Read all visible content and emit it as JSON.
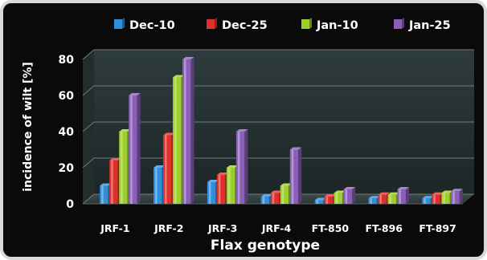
{
  "chart_data": {
    "type": "bar",
    "xlabel": "Flax genotype",
    "ylabel": "incidence of wilt [%]",
    "ylim": [
      0,
      80
    ],
    "yticks": [
      0,
      20,
      40,
      60,
      80
    ],
    "grid": true,
    "legend_position": "top",
    "categories": [
      "JRF-1",
      "JRF-2",
      "JRF-3",
      "JRF-4",
      "FT-850",
      "FT-896",
      "FT-897"
    ],
    "series": [
      {
        "name": "Dec-10",
        "color": "#2f8fdc",
        "values": [
          10,
          20,
          12,
          4,
          2,
          3,
          3
        ]
      },
      {
        "name": "Dec-25",
        "color": "#e0302a",
        "values": [
          24,
          38,
          16,
          6,
          4,
          5,
          5
        ]
      },
      {
        "name": "Jan-10",
        "color": "#9ccf2a",
        "values": [
          40,
          70,
          20,
          10,
          6,
          5,
          6
        ]
      },
      {
        "name": "Jan-25",
        "color": "#8a5fb8",
        "values": [
          60,
          80,
          40,
          30,
          8,
          8,
          7
        ]
      }
    ]
  }
}
